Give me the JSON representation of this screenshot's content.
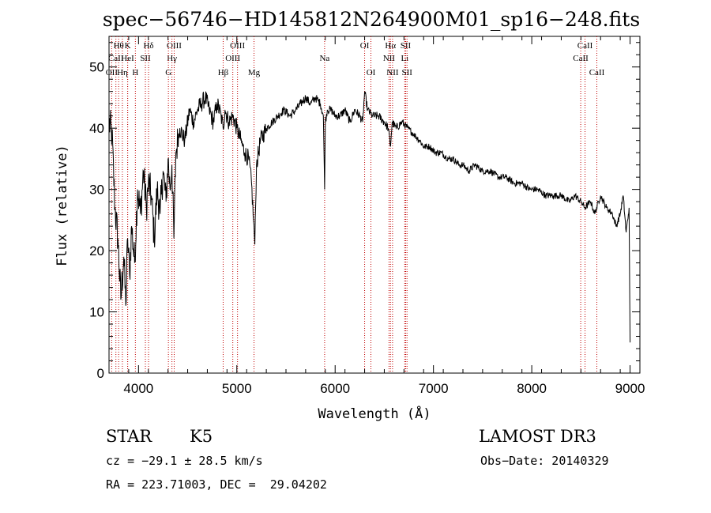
{
  "chart_data": {
    "type": "line",
    "title": "spec−56746−HD145812N264900M01_sp16−248.fits",
    "xlabel": "Wavelength (Å)",
    "ylabel": "Flux (relative)",
    "xlim": [
      3700,
      9100
    ],
    "ylim": [
      0,
      55
    ],
    "x_ticks": [
      4000,
      5000,
      6000,
      7000,
      8000,
      9000
    ],
    "y_ticks": [
      0,
      10,
      20,
      30,
      40,
      50
    ],
    "series": [
      {
        "name": "flux",
        "x": [
          3700,
          3730,
          3760,
          3790,
          3820,
          3850,
          3870,
          3890,
          3910,
          3930,
          3960,
          3990,
          4020,
          4050,
          4080,
          4100,
          4130,
          4160,
          4190,
          4220,
          4250,
          4280,
          4300,
          4320,
          4340,
          4360,
          4380,
          4420,
          4470,
          4520,
          4560,
          4600,
          4640,
          4680,
          4720,
          4760,
          4800,
          4840,
          4860,
          4880,
          4920,
          4960,
          5000,
          5040,
          5080,
          5120,
          5150,
          5170,
          5183,
          5200,
          5240,
          5300,
          5360,
          5420,
          5480,
          5540,
          5600,
          5650,
          5700,
          5750,
          5800,
          5850,
          5880,
          5893,
          5900,
          5920,
          5960,
          6000,
          6050,
          6100,
          6150,
          6200,
          6250,
          6280,
          6300,
          6330,
          6380,
          6440,
          6500,
          6540,
          6563,
          6580,
          6620,
          6680,
          6740,
          6800,
          6860,
          6900,
          6960,
          7020,
          7080,
          7150,
          7200,
          7260,
          7300,
          7360,
          7420,
          7500,
          7580,
          7660,
          7740,
          7820,
          7900,
          7980,
          8060,
          8140,
          8220,
          8300,
          8380,
          8440,
          8500,
          8540,
          8600,
          8640,
          8700,
          8760,
          8820,
          8860,
          8900,
          8930,
          8960,
          8990,
          9000
        ],
        "values": [
          41,
          39,
          27,
          22,
          12,
          19,
          11,
          22,
          16,
          24,
          18,
          30,
          26,
          33,
          27,
          31,
          29,
          22,
          30,
          26,
          33,
          28,
          35,
          30,
          34,
          22,
          36,
          40,
          38,
          43,
          41,
          43,
          44,
          45,
          43,
          41,
          44,
          42,
          40,
          43,
          41,
          42,
          40,
          38,
          36,
          35,
          31,
          25,
          21,
          34,
          38,
          40,
          41,
          42,
          43,
          42,
          43,
          44,
          45,
          44,
          45,
          44,
          42,
          30,
          41,
          43,
          43,
          42,
          42,
          43,
          41,
          43,
          42,
          41,
          46,
          43,
          42,
          42,
          41,
          40,
          37,
          41,
          40,
          41,
          40,
          39,
          38,
          37,
          37,
          36,
          36,
          35,
          35,
          34,
          34,
          33,
          34,
          33,
          33,
          32,
          32,
          31,
          31,
          30,
          30,
          29,
          29,
          29,
          28,
          29,
          28,
          27,
          28,
          26,
          29,
          27,
          26,
          24,
          26,
          29,
          23,
          27,
          5
        ]
      }
    ],
    "spectral_lines": [
      {
        "label": "Hθ",
        "x": 3798,
        "row": 1
      },
      {
        "label": "OII",
        "x": 3727,
        "row": 3
      },
      {
        "label": "CaII",
        "x": 3770,
        "row": 2
      },
      {
        "label": "Hη",
        "x": 3836,
        "row": 3
      },
      {
        "label": "K",
        "x": 3890,
        "row": 1
      },
      {
        "label": "HeI",
        "x": 3889,
        "row": 2
      },
      {
        "label": "H",
        "x": 3968,
        "row": 3
      },
      {
        "label": "SII",
        "x": 4070,
        "row": 2
      },
      {
        "label": "Hδ",
        "x": 4102,
        "row": 1
      },
      {
        "label": "OIII",
        "x": 4363,
        "row": 1
      },
      {
        "label": "Hγ",
        "x": 4340,
        "row": 2
      },
      {
        "label": "G",
        "x": 4304,
        "row": 3
      },
      {
        "label": "Hβ",
        "x": 4861,
        "row": 3
      },
      {
        "label": "OIII",
        "x": 5007,
        "row": 1
      },
      {
        "label": "OIII",
        "x": 4959,
        "row": 2
      },
      {
        "label": "Mg",
        "x": 5175,
        "row": 3
      },
      {
        "label": "Na",
        "x": 5893,
        "row": 2
      },
      {
        "label": "OI",
        "x": 6300,
        "row": 1
      },
      {
        "label": "OI",
        "x": 6364,
        "row": 3
      },
      {
        "label": "Hα",
        "x": 6563,
        "row": 1
      },
      {
        "label": "NII",
        "x": 6548,
        "row": 2
      },
      {
        "label": "NII",
        "x": 6584,
        "row": 3
      },
      {
        "label": "SII",
        "x": 6717,
        "row": 1
      },
      {
        "label": "Li",
        "x": 6708,
        "row": 2
      },
      {
        "label": "SII",
        "x": 6731,
        "row": 3
      },
      {
        "label": "CaII",
        "x": 8542,
        "row": 1
      },
      {
        "label": "CaII",
        "x": 8498,
        "row": 2
      },
      {
        "label": "CaII",
        "x": 8662,
        "row": 3
      }
    ]
  },
  "info": {
    "class": "STAR",
    "subclass": "K5",
    "survey": "LAMOST DR3",
    "cz": "cz = −29.1 ± 28.5 km/s",
    "obs_date": "Obs−Date: 20140329",
    "radec": "RA = 223.71003, DEC =  29.04202"
  }
}
